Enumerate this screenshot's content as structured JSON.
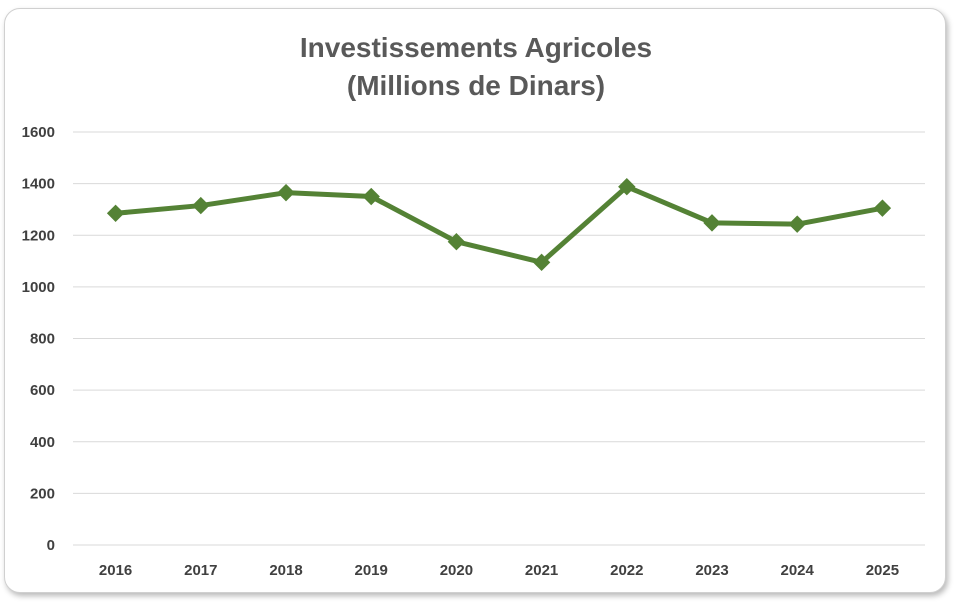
{
  "chart_data": {
    "type": "line",
    "title": "Investissements Agricoles",
    "subtitle": "(Millions de Dinars)",
    "categories": [
      "2016",
      "2017",
      "2018",
      "2019",
      "2020",
      "2021",
      "2022",
      "2023",
      "2024",
      "2025"
    ],
    "series": [
      {
        "values": [
          1285,
          1315,
          1365,
          1350,
          1175,
          1095,
          1388,
          1248,
          1243,
          1305
        ],
        "color": "#548235",
        "marker": "diamond"
      }
    ],
    "ylim": [
      0,
      1600
    ],
    "yticks": [
      0,
      200,
      400,
      600,
      800,
      1000,
      1200,
      1400,
      1600
    ],
    "grid": "horizontal",
    "legend": "none"
  }
}
